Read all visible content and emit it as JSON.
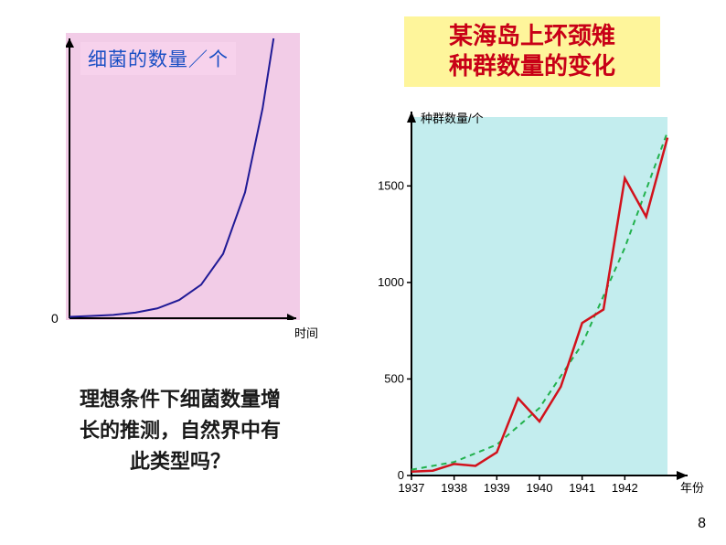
{
  "leftChart": {
    "type": "line",
    "title": "细菌的数量／个",
    "title_color": "#1a4fc4",
    "title_bg": "#f7d2ec",
    "title_fontsize": 21,
    "bg_color": "#f2cce7",
    "curve_color": "#201a96",
    "curve_width": 2,
    "axis_color": "#000000",
    "xlabel": "时间",
    "origin_label": "0",
    "xrange": [
      0,
      10
    ],
    "yrange": [
      0,
      100
    ],
    "points": [
      [
        0.0,
        0.5
      ],
      [
        1.0,
        0.8
      ],
      [
        2.0,
        1.2
      ],
      [
        3.0,
        2.0
      ],
      [
        4.0,
        3.5
      ],
      [
        5.0,
        6.5
      ],
      [
        6.0,
        12.0
      ],
      [
        7.0,
        23.0
      ],
      [
        8.0,
        45.0
      ],
      [
        8.8,
        75.0
      ],
      [
        9.3,
        100.0
      ]
    ]
  },
  "leftCaption": "理想条件下细菌数量增<br>长的推测，自然界中有<br>此类型吗？",
  "rightTitle": "某海岛上环颈雉<br>种群数量的变化",
  "rightChart": {
    "type": "line",
    "bg_color": "#c3edee",
    "axis_color": "#000000",
    "grid_width": 0,
    "xlabel": "年份",
    "ylabel": "种群数量/个",
    "label_fontsize": 13,
    "tick_fontsize": 13,
    "xlim": [
      1937,
      1943
    ],
    "ylim": [
      0,
      1800
    ],
    "xticks": [
      1937,
      1938,
      1939,
      1940,
      1941,
      1942
    ],
    "yticks": [
      0,
      500,
      1000,
      1500
    ],
    "red_series": {
      "color": "#d2121c",
      "width": 2.5,
      "dash": "solid",
      "points": [
        [
          1937.0,
          20
        ],
        [
          1937.5,
          25
        ],
        [
          1938.0,
          60
        ],
        [
          1938.5,
          50
        ],
        [
          1939.0,
          120
        ],
        [
          1939.5,
          400
        ],
        [
          1940.0,
          280
        ],
        [
          1940.5,
          460
        ],
        [
          1941.0,
          790
        ],
        [
          1941.5,
          860
        ],
        [
          1942.0,
          1540
        ],
        [
          1942.5,
          1340
        ],
        [
          1943.0,
          1750
        ]
      ]
    },
    "green_series": {
      "color": "#22b14d",
      "width": 2,
      "dash": "6,5",
      "points": [
        [
          1937.0,
          30
        ],
        [
          1938.0,
          70
        ],
        [
          1939.0,
          160
        ],
        [
          1940.0,
          350
        ],
        [
          1941.0,
          680
        ],
        [
          1942.0,
          1180
        ],
        [
          1943.0,
          1780
        ]
      ]
    }
  },
  "pageNumber": "8"
}
